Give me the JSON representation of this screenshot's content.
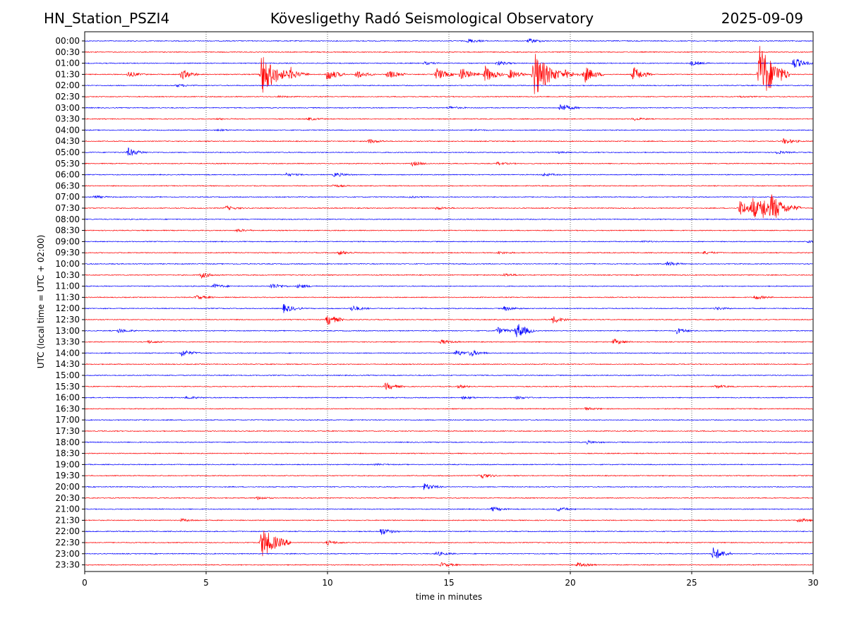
{
  "header": {
    "station": "HN_Station_PSZI4",
    "observatory": "Kövesligethy Radó Seismological Observatory",
    "date": "2025-09-09"
  },
  "chart_data": {
    "type": "line",
    "title": "Kövesligethy Radó Seismological Observatory",
    "xlabel": "time in minutes",
    "ylabel": "UTC (local time = UTC + 02:00)",
    "xlim": [
      0,
      30
    ],
    "xticks": [
      "0",
      "5",
      "10",
      "15",
      "20",
      "25",
      "30"
    ],
    "grid_x": true,
    "series_colors": [
      "#0000ff",
      "#ff0000"
    ],
    "rows": [
      {
        "label": "00:00",
        "events": [
          {
            "t": 15.8,
            "a": 3
          },
          {
            "t": 18.3,
            "a": 3
          }
        ]
      },
      {
        "label": "00:30",
        "events": []
      },
      {
        "label": "01:00",
        "events": [
          {
            "t": 14.0,
            "a": 2
          },
          {
            "t": 17.0,
            "a": 3
          },
          {
            "t": 25.0,
            "a": 3
          },
          {
            "t": 29.2,
            "a": 8
          }
        ]
      },
      {
        "label": "01:30",
        "events": [
          {
            "t": 1.8,
            "a": 4
          },
          {
            "t": 4.0,
            "a": 7
          },
          {
            "t": 7.3,
            "a": 30
          },
          {
            "t": 8.5,
            "a": 7
          },
          {
            "t": 10.0,
            "a": 9
          },
          {
            "t": 11.2,
            "a": 6
          },
          {
            "t": 12.5,
            "a": 6
          },
          {
            "t": 14.5,
            "a": 9
          },
          {
            "t": 15.5,
            "a": 10
          },
          {
            "t": 16.5,
            "a": 12
          },
          {
            "t": 17.5,
            "a": 7
          },
          {
            "t": 18.5,
            "a": 35
          },
          {
            "t": 19.8,
            "a": 6
          },
          {
            "t": 20.6,
            "a": 12
          },
          {
            "t": 22.6,
            "a": 11
          },
          {
            "t": 27.8,
            "a": 45
          }
        ]
      },
      {
        "label": "02:00",
        "events": [
          {
            "t": 3.8,
            "a": 2
          }
        ]
      },
      {
        "label": "02:30",
        "events": [
          {
            "t": 8.0,
            "a": 1
          },
          {
            "t": 27.0,
            "a": 1
          }
        ]
      },
      {
        "label": "03:00",
        "events": [
          {
            "t": 19.6,
            "a": 6
          },
          {
            "t": 15.0,
            "a": 2
          }
        ]
      },
      {
        "label": "03:30",
        "events": [
          {
            "t": 5.5,
            "a": 1
          },
          {
            "t": 9.2,
            "a": 2
          },
          {
            "t": 22.6,
            "a": 2
          }
        ]
      },
      {
        "label": "04:00",
        "events": [
          {
            "t": 5.5,
            "a": 1
          },
          {
            "t": 16.0,
            "a": 1
          }
        ]
      },
      {
        "label": "04:30",
        "events": [
          {
            "t": 11.7,
            "a": 3
          },
          {
            "t": 28.8,
            "a": 4
          }
        ]
      },
      {
        "label": "05:00",
        "events": [
          {
            "t": 1.8,
            "a": 6
          },
          {
            "t": 19.5,
            "a": 1
          },
          {
            "t": 28.5,
            "a": 2
          }
        ]
      },
      {
        "label": "05:30",
        "events": [
          {
            "t": 13.5,
            "a": 3
          },
          {
            "t": 17.0,
            "a": 2
          }
        ]
      },
      {
        "label": "06:00",
        "events": [
          {
            "t": 8.3,
            "a": 2
          },
          {
            "t": 10.3,
            "a": 3
          },
          {
            "t": 18.9,
            "a": 2
          }
        ]
      },
      {
        "label": "06:30",
        "events": [
          {
            "t": 10.2,
            "a": 2
          }
        ]
      },
      {
        "label": "07:00",
        "events": [
          {
            "t": 0.4,
            "a": 2
          },
          {
            "t": 13.4,
            "a": 1
          }
        ]
      },
      {
        "label": "07:30",
        "events": [
          {
            "t": 5.8,
            "a": 3
          },
          {
            "t": 14.5,
            "a": 2
          },
          {
            "t": 27.0,
            "a": 12
          },
          {
            "t": 27.5,
            "a": 14
          },
          {
            "t": 27.9,
            "a": 14
          },
          {
            "t": 28.3,
            "a": 16
          }
        ]
      },
      {
        "label": "08:00",
        "events": []
      },
      {
        "label": "08:30",
        "events": [
          {
            "t": 6.3,
            "a": 2
          }
        ]
      },
      {
        "label": "09:00",
        "events": [
          {
            "t": 23.0,
            "a": 1
          },
          {
            "t": 29.8,
            "a": 2
          }
        ]
      },
      {
        "label": "09:30",
        "events": [
          {
            "t": 10.5,
            "a": 3
          },
          {
            "t": 17.0,
            "a": 2
          },
          {
            "t": 25.5,
            "a": 2
          }
        ]
      },
      {
        "label": "10:00",
        "events": [
          {
            "t": 24.0,
            "a": 3
          }
        ]
      },
      {
        "label": "10:30",
        "events": [
          {
            "t": 4.8,
            "a": 4
          },
          {
            "t": 17.3,
            "a": 2
          }
        ]
      },
      {
        "label": "11:00",
        "events": [
          {
            "t": 5.3,
            "a": 3
          },
          {
            "t": 7.7,
            "a": 4
          },
          {
            "t": 8.8,
            "a": 3
          }
        ]
      },
      {
        "label": "11:30",
        "events": [
          {
            "t": 4.6,
            "a": 3
          },
          {
            "t": 27.6,
            "a": 3
          }
        ]
      },
      {
        "label": "12:00",
        "events": [
          {
            "t": 8.2,
            "a": 6
          },
          {
            "t": 11.0,
            "a": 4
          },
          {
            "t": 17.3,
            "a": 3
          },
          {
            "t": 26.0,
            "a": 2
          }
        ]
      },
      {
        "label": "12:30",
        "events": [
          {
            "t": 10.0,
            "a": 8
          },
          {
            "t": 19.3,
            "a": 5
          }
        ]
      },
      {
        "label": "13:00",
        "events": [
          {
            "t": 1.4,
            "a": 3
          },
          {
            "t": 17.0,
            "a": 5
          },
          {
            "t": 17.8,
            "a": 12
          },
          {
            "t": 24.4,
            "a": 4
          }
        ]
      },
      {
        "label": "13:30",
        "events": [
          {
            "t": 2.6,
            "a": 2
          },
          {
            "t": 14.7,
            "a": 3
          },
          {
            "t": 21.8,
            "a": 4
          }
        ]
      },
      {
        "label": "14:00",
        "events": [
          {
            "t": 4.0,
            "a": 5
          },
          {
            "t": 15.3,
            "a": 4
          },
          {
            "t": 15.9,
            "a": 4
          }
        ]
      },
      {
        "label": "14:30",
        "events": []
      },
      {
        "label": "15:00",
        "events": []
      },
      {
        "label": "15:30",
        "events": [
          {
            "t": 12.4,
            "a": 5
          },
          {
            "t": 15.4,
            "a": 2
          },
          {
            "t": 26.0,
            "a": 2
          }
        ]
      },
      {
        "label": "16:00",
        "events": [
          {
            "t": 4.2,
            "a": 2
          },
          {
            "t": 15.6,
            "a": 2
          },
          {
            "t": 17.8,
            "a": 2
          }
        ]
      },
      {
        "label": "16:30",
        "events": [
          {
            "t": 20.6,
            "a": 2
          }
        ]
      },
      {
        "label": "17:00",
        "events": []
      },
      {
        "label": "17:30",
        "events": []
      },
      {
        "label": "18:00",
        "events": [
          {
            "t": 20.7,
            "a": 2
          }
        ]
      },
      {
        "label": "18:30",
        "events": []
      },
      {
        "label": "19:00",
        "events": [
          {
            "t": 12.0,
            "a": 1
          }
        ]
      },
      {
        "label": "19:30",
        "events": [
          {
            "t": 16.3,
            "a": 4
          }
        ]
      },
      {
        "label": "20:00",
        "events": [
          {
            "t": 14.0,
            "a": 5
          }
        ]
      },
      {
        "label": "20:30",
        "events": [
          {
            "t": 7.1,
            "a": 2
          }
        ]
      },
      {
        "label": "21:00",
        "events": [
          {
            "t": 16.8,
            "a": 3
          },
          {
            "t": 19.5,
            "a": 3
          }
        ]
      },
      {
        "label": "21:30",
        "events": [
          {
            "t": 4.0,
            "a": 2
          },
          {
            "t": 29.4,
            "a": 3
          }
        ]
      },
      {
        "label": "22:00",
        "events": [
          {
            "t": 12.2,
            "a": 5
          }
        ]
      },
      {
        "label": "22:30",
        "events": [
          {
            "t": 7.3,
            "a": 22
          },
          {
            "t": 10.0,
            "a": 3
          }
        ]
      },
      {
        "label": "23:00",
        "events": [
          {
            "t": 14.5,
            "a": 3
          },
          {
            "t": 25.9,
            "a": 10
          }
        ]
      },
      {
        "label": "23:30",
        "events": [
          {
            "t": 14.7,
            "a": 3
          },
          {
            "t": 20.3,
            "a": 3
          }
        ]
      }
    ]
  }
}
